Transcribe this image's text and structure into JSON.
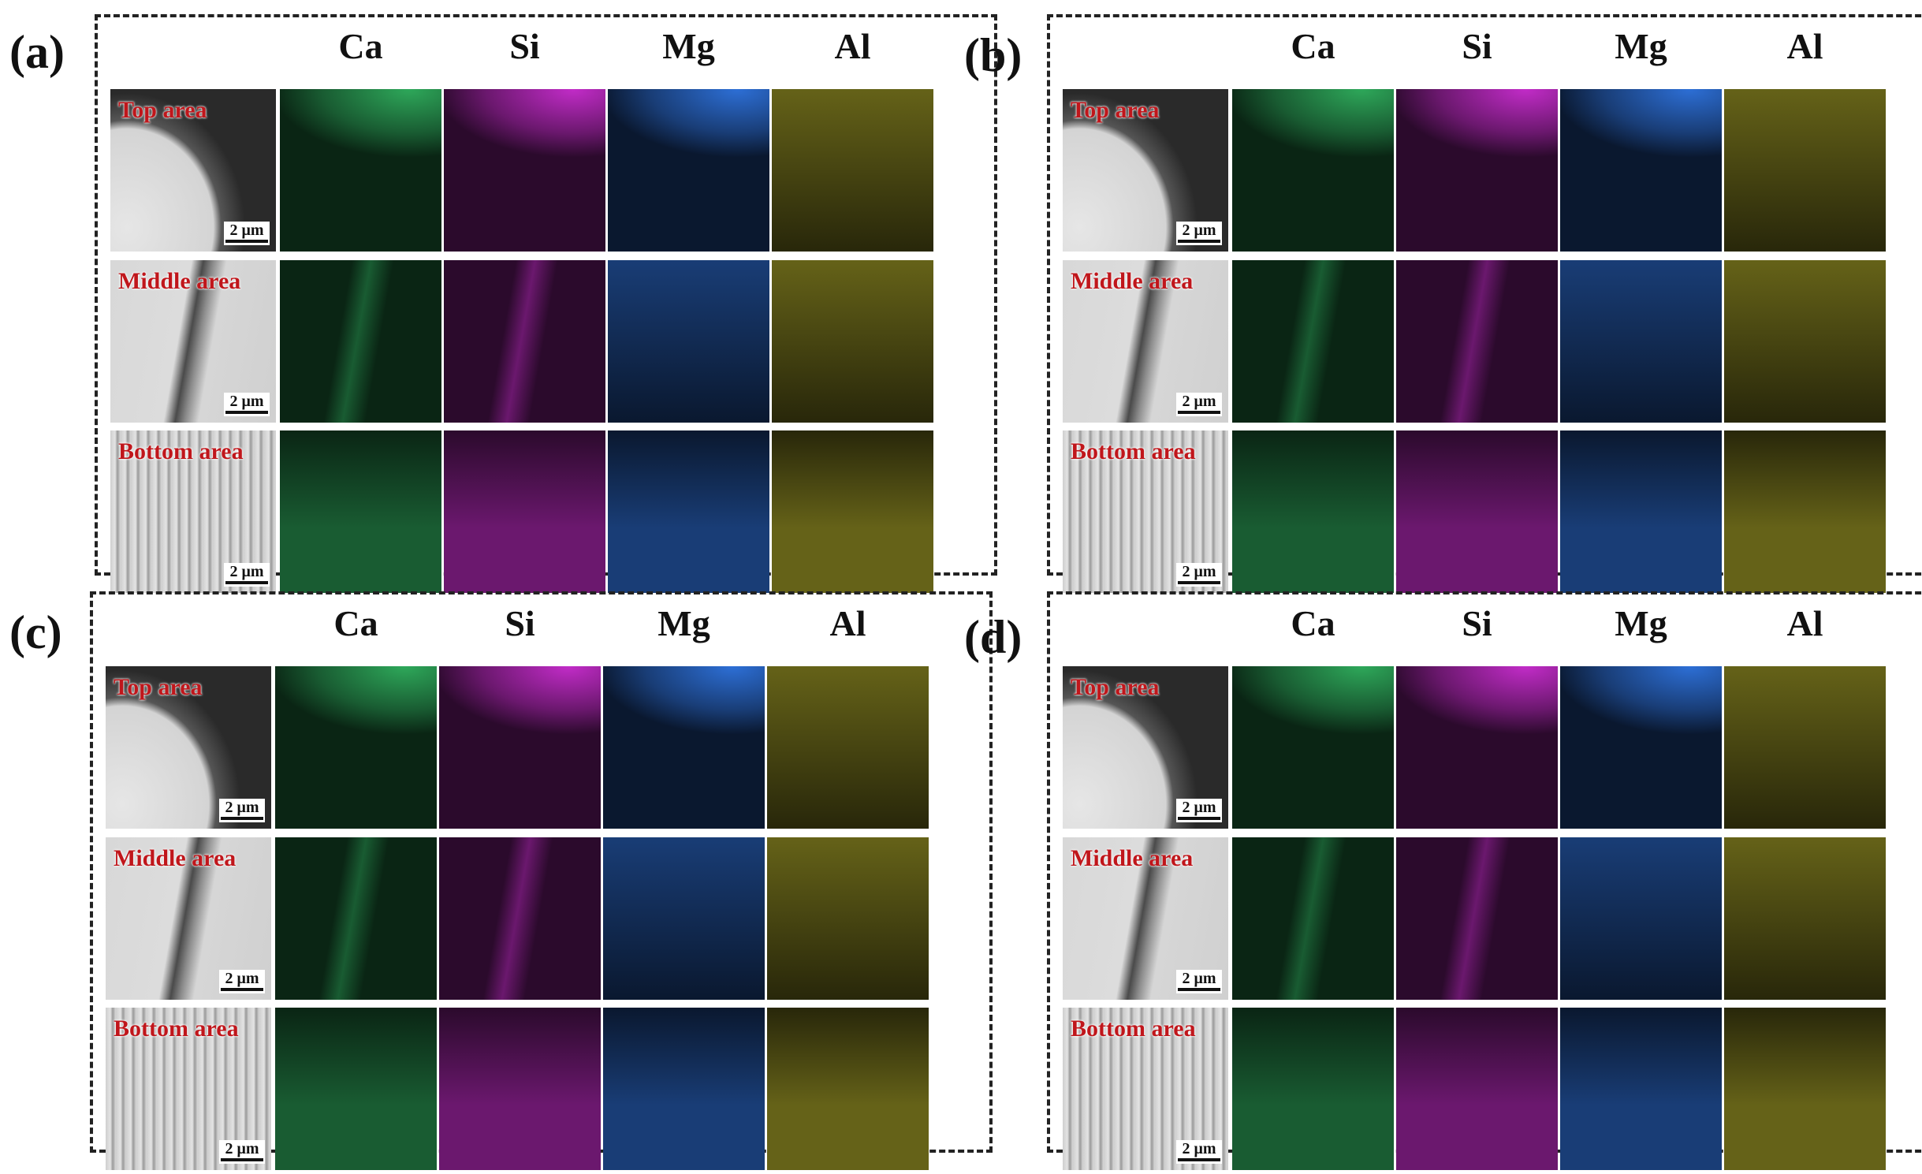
{
  "figure": {
    "columns": [
      "Ca",
      "Si",
      "Mg",
      "Al"
    ],
    "rows": [
      "Top area",
      "Middle area",
      "Bottom area"
    ],
    "scale_label": "2 μm",
    "panels": [
      {
        "letter": "(a)"
      },
      {
        "letter": "(b)"
      },
      {
        "letter": "(c)"
      },
      {
        "letter": "(d)"
      }
    ]
  },
  "colors": {
    "Ca": "#2ea85a",
    "Si": "#c22cc8",
    "Mg": "#2d6fd6",
    "Al": "#b8b22c",
    "label_red": "#c0161b"
  }
}
